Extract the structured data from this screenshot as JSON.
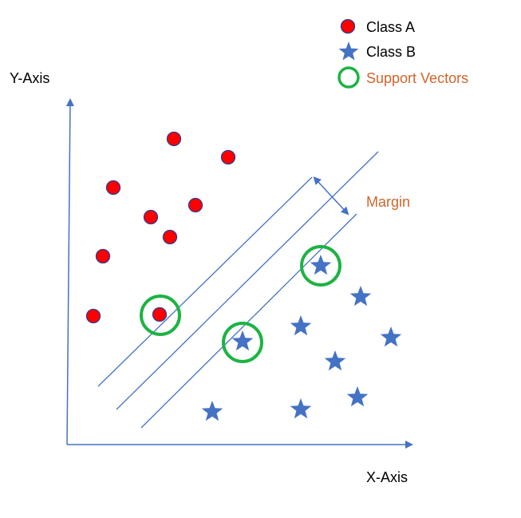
{
  "axes": {
    "x_label": "X-Axis",
    "y_label": "Y-Axis"
  },
  "legend": {
    "class_a": "Class A",
    "class_b": "Class B",
    "support_vectors": "Support Vectors"
  },
  "margin_label": "Margin",
  "colors": {
    "class_a_fill": "#ff0000",
    "class_a_stroke": "#2f3f8f",
    "class_b": "#4472c4",
    "support_vector_ring": "#1db343",
    "axis_line": "#4472c4",
    "hyperplane_line": "#4472c4",
    "label_text": "#000000",
    "accent_text": "#d0652a"
  },
  "icons": {
    "class_a_marker": "red-circle-icon",
    "class_b_marker": "blue-star-icon",
    "support_vector_marker": "green-ring-icon"
  }
}
